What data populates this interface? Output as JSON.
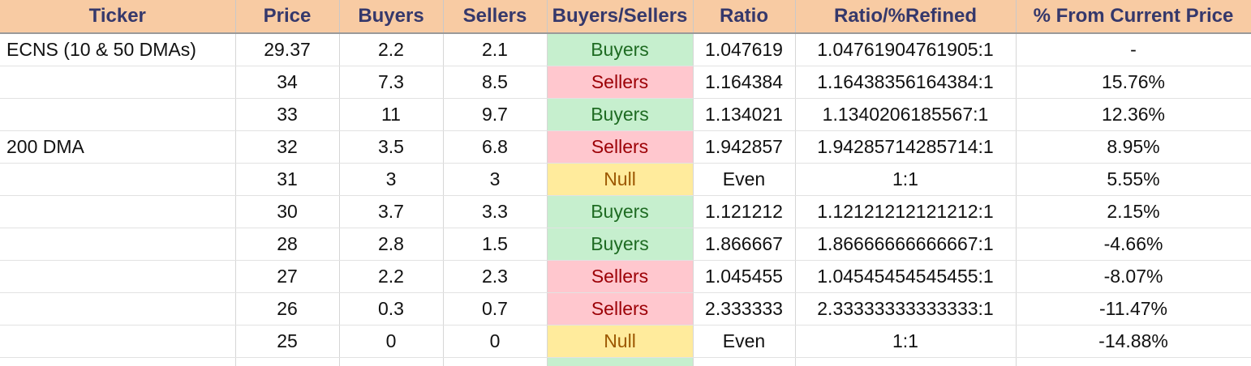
{
  "columns": [
    "Ticker",
    "Price",
    "Buyers",
    "Sellers",
    "Buyers/Sellers",
    "Ratio",
    "Ratio/%Refined",
    "% From Current Price"
  ],
  "rows": [
    {
      "ticker": "ECNS (10 & 50 DMAs)",
      "price": "29.37",
      "buyers": "2.2",
      "sellers": "2.1",
      "bs": "Buyers",
      "ratio": "1.047619",
      "refined": "1.04761904761905:1",
      "pct": "-"
    },
    {
      "ticker": "",
      "price": "34",
      "buyers": "7.3",
      "sellers": "8.5",
      "bs": "Sellers",
      "ratio": "1.164384",
      "refined": "1.16438356164384:1",
      "pct": "15.76%"
    },
    {
      "ticker": "",
      "price": "33",
      "buyers": "11",
      "sellers": "9.7",
      "bs": "Buyers",
      "ratio": "1.134021",
      "refined": "1.1340206185567:1",
      "pct": "12.36%"
    },
    {
      "ticker": "200 DMA",
      "price": "32",
      "buyers": "3.5",
      "sellers": "6.8",
      "bs": "Sellers",
      "ratio": "1.942857",
      "refined": "1.94285714285714:1",
      "pct": "8.95%"
    },
    {
      "ticker": "",
      "price": "31",
      "buyers": "3",
      "sellers": "3",
      "bs": "Null",
      "ratio": "Even",
      "refined": "1:1",
      "pct": "5.55%"
    },
    {
      "ticker": "",
      "price": "30",
      "buyers": "3.7",
      "sellers": "3.3",
      "bs": "Buyers",
      "ratio": "1.121212",
      "refined": "1.12121212121212:1",
      "pct": "2.15%"
    },
    {
      "ticker": "",
      "price": "28",
      "buyers": "2.8",
      "sellers": "1.5",
      "bs": "Buyers",
      "ratio": "1.866667",
      "refined": "1.86666666666667:1",
      "pct": "-4.66%"
    },
    {
      "ticker": "",
      "price": "27",
      "buyers": "2.2",
      "sellers": "2.3",
      "bs": "Sellers",
      "ratio": "1.045455",
      "refined": "1.04545454545455:1",
      "pct": "-8.07%"
    },
    {
      "ticker": "",
      "price": "26",
      "buyers": "0.3",
      "sellers": "0.7",
      "bs": "Sellers",
      "ratio": "2.333333",
      "refined": "2.33333333333333:1",
      "pct": "-11.47%"
    },
    {
      "ticker": "",
      "price": "25",
      "buyers": "0",
      "sellers": "0",
      "bs": "Null",
      "ratio": "Even",
      "refined": "1:1",
      "pct": "-14.88%"
    }
  ],
  "colors": {
    "header_bg": "#f8cba3",
    "header_text": "#35386b",
    "buyers_bg": "#c6efce",
    "buyers_text": "#1e6b22",
    "sellers_bg": "#ffc7ce",
    "sellers_text": "#9c0006",
    "null_bg": "#ffeb9c",
    "null_text": "#9c5700"
  }
}
